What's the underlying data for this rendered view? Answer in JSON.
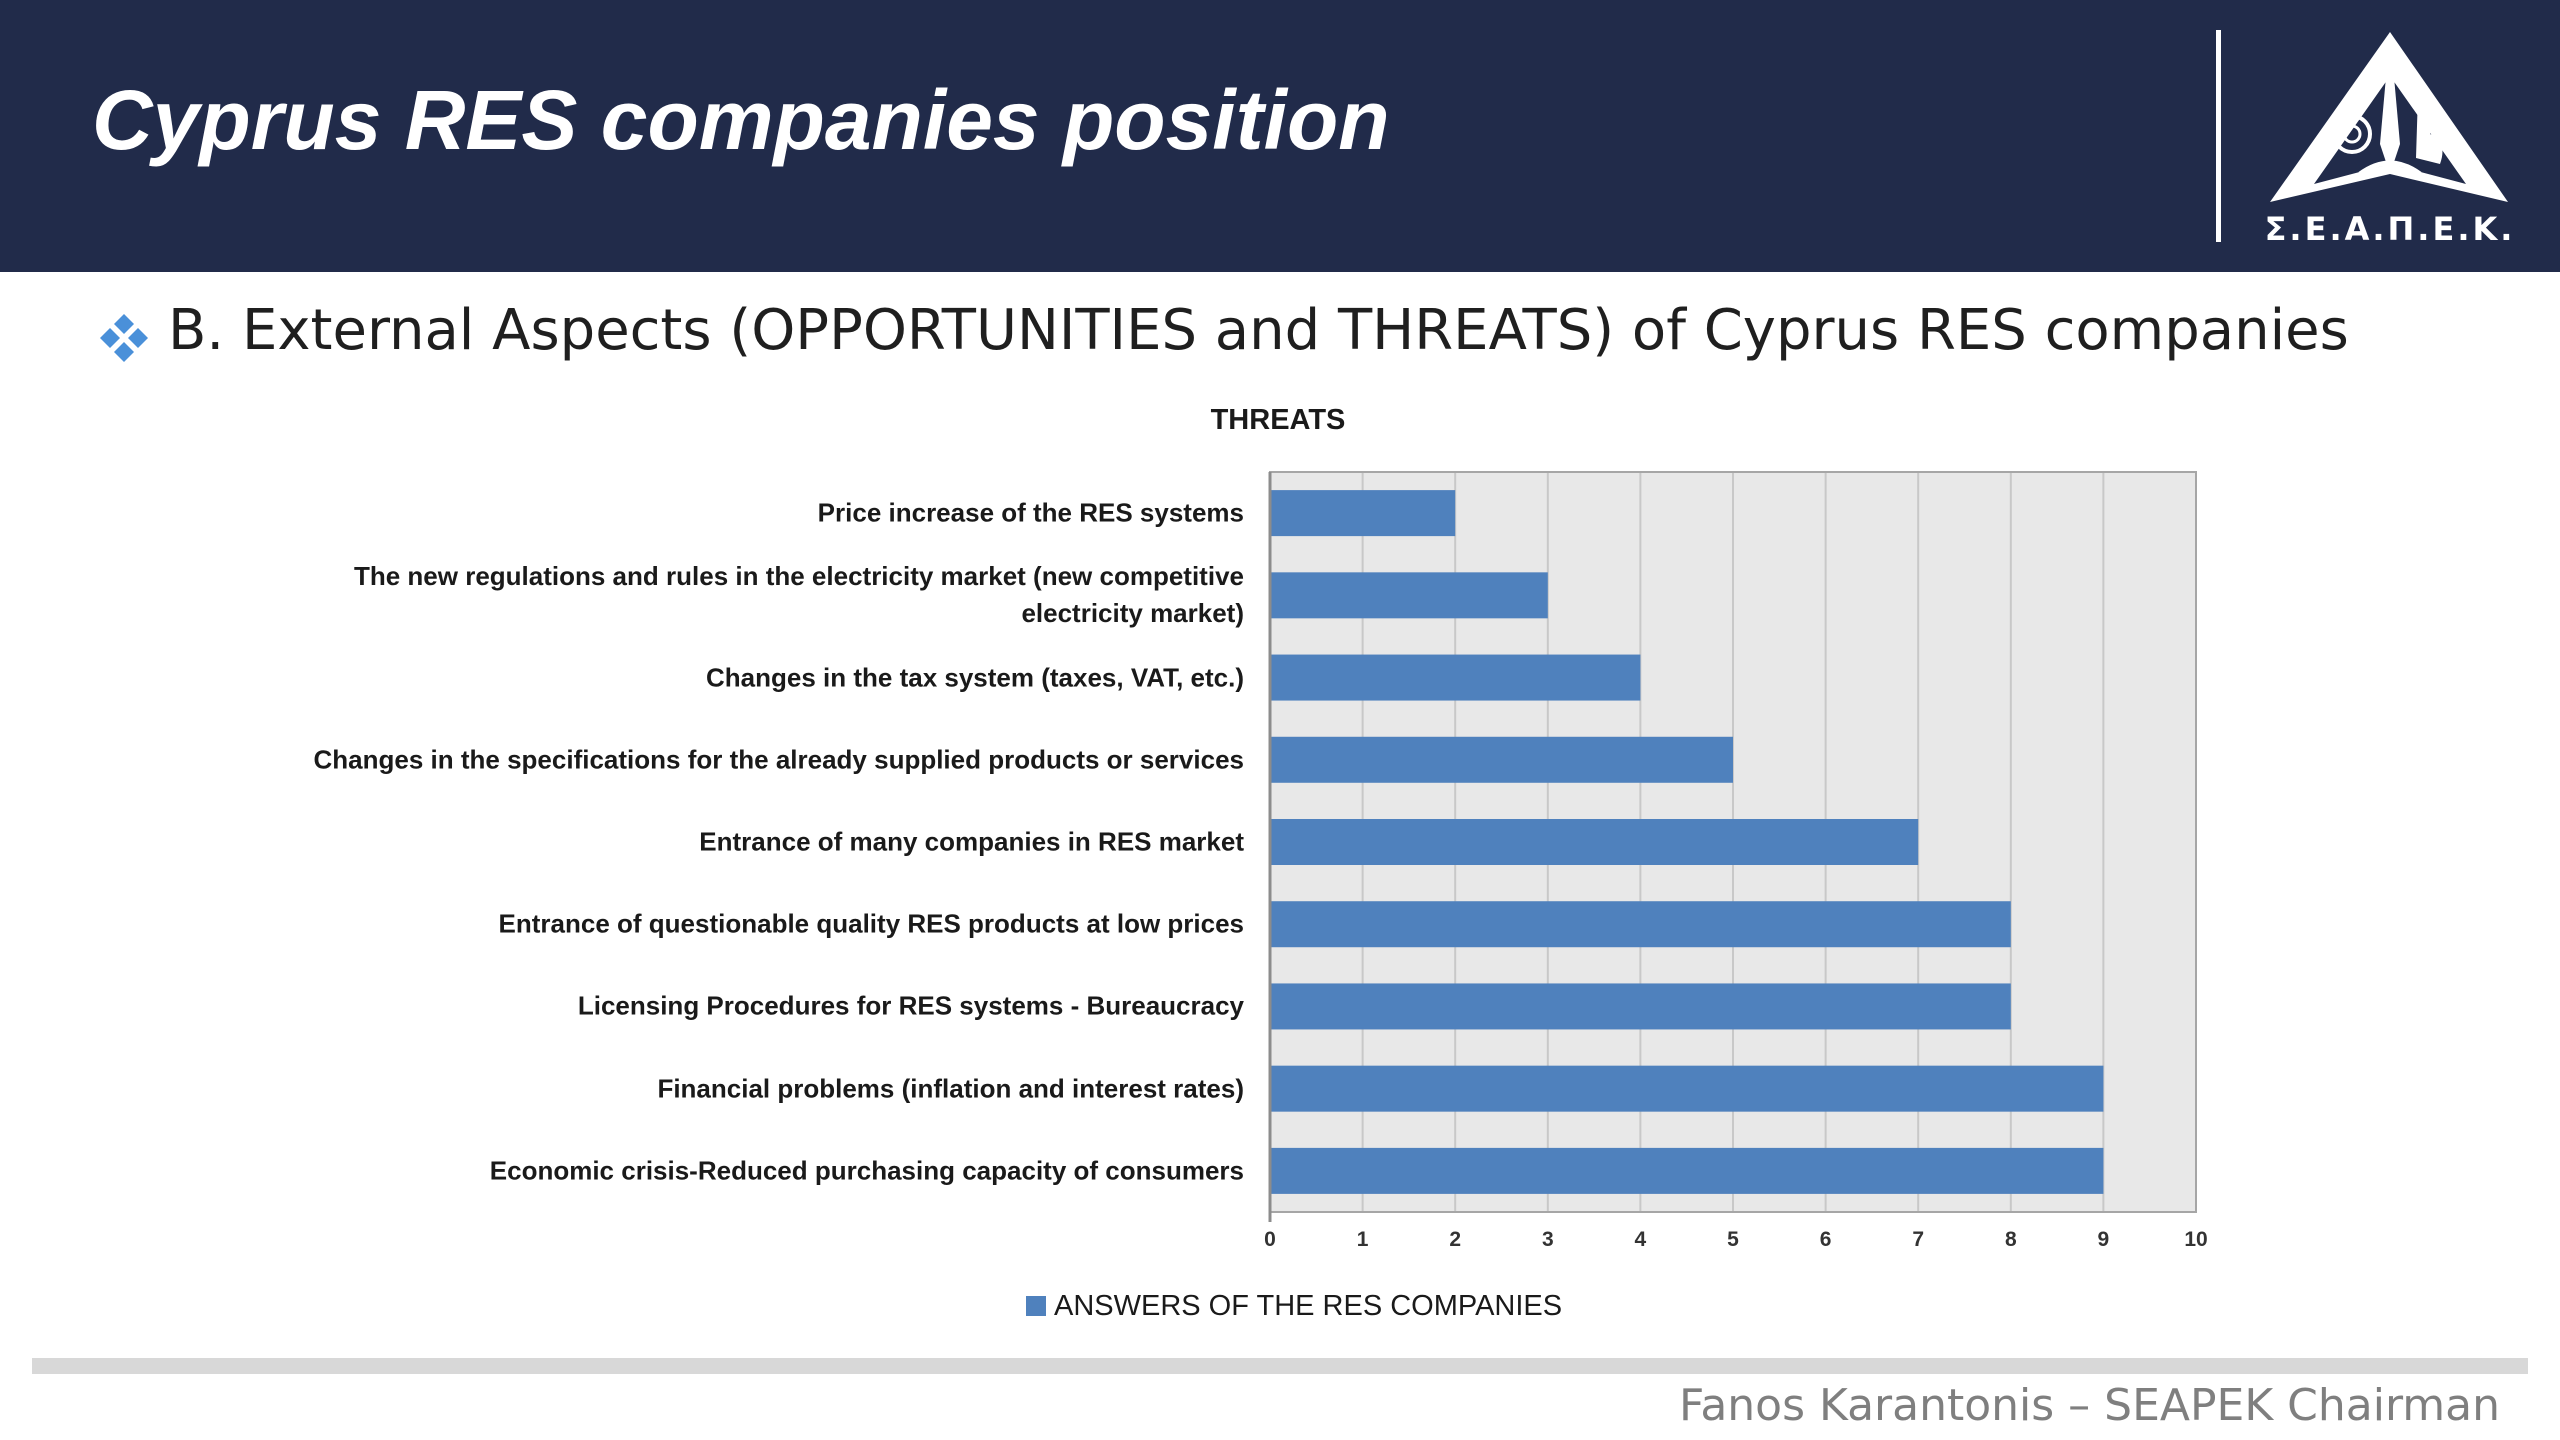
{
  "header": {
    "title": "Cyprus RES companies position",
    "logo_text": "Σ.Ε.Α.Π.Ε.Κ.",
    "logo_icon": "seapek-logo-icon"
  },
  "subtitle": {
    "icon": "diamond-bullet-icon",
    "text": "B. External Aspects (OPPORTUNITIES and THREATS) of Cyprus RES companies"
  },
  "footer": {
    "credit": "Fanos Karantonis – SEAPEK Chairman"
  },
  "colors": {
    "header_bg": "#212b4a",
    "bar_fill": "#4f81bd",
    "plot_bg": "#e8e8e8",
    "gridline": "#c8c8c8",
    "bullet": "#4a90d9"
  },
  "chart_data": {
    "type": "bar",
    "orientation": "horizontal",
    "title": "THREATS",
    "xlabel": "",
    "ylabel": "",
    "xlim": [
      0,
      10
    ],
    "x_ticks": [
      "0",
      "1",
      "2",
      "3",
      "4",
      "5",
      "6",
      "7",
      "8",
      "9",
      "10"
    ],
    "grid": true,
    "legend_position": "bottom",
    "categories": [
      "Price increase of the RES systems",
      "The new regulations and rules in the electricity market (new competitive electricity market)",
      "Changes in the tax system (taxes, VAT, etc.)",
      "Changes in the specifications for the already supplied products or services",
      "Entrance of many companies in RES market",
      "Entrance of questionable quality RES products at low prices",
      "Licensing Procedures for RES systems - Bureaucracy",
      "Financial problems (inflation and interest rates)",
      "Economic crisis-Reduced purchasing capacity of consumers"
    ],
    "series": [
      {
        "name": "ANSWERS OF THE RES COMPANIES",
        "color": "#4f81bd",
        "values": [
          2,
          3,
          4,
          5,
          7,
          8,
          8,
          9,
          9
        ]
      }
    ]
  }
}
